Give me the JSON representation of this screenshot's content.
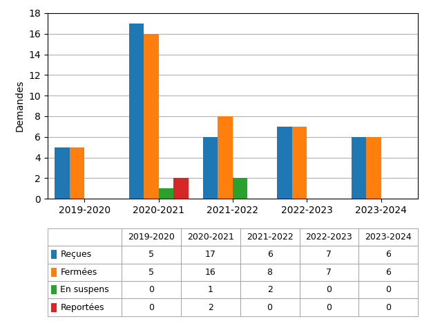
{
  "chart_data": {
    "type": "bar",
    "categories": [
      "2019-2020",
      "2020-2021",
      "2021-2022",
      "2022-2023",
      "2023-2024"
    ],
    "series": [
      {
        "name": "Reçues",
        "values": [
          5,
          17,
          6,
          7,
          6
        ]
      },
      {
        "name": "Fermées",
        "values": [
          5,
          16,
          8,
          7,
          6
        ]
      },
      {
        "name": "En suspens",
        "values": [
          0,
          1,
          2,
          0,
          0
        ]
      },
      {
        "name": "Reportées",
        "values": [
          0,
          2,
          0,
          0,
          0
        ]
      }
    ],
    "ylabel": "Demandes",
    "ylim": [
      0,
      18
    ],
    "yticks": [
      0,
      2,
      4,
      6,
      8,
      10,
      12,
      14,
      16,
      18
    ],
    "grid": true
  }
}
